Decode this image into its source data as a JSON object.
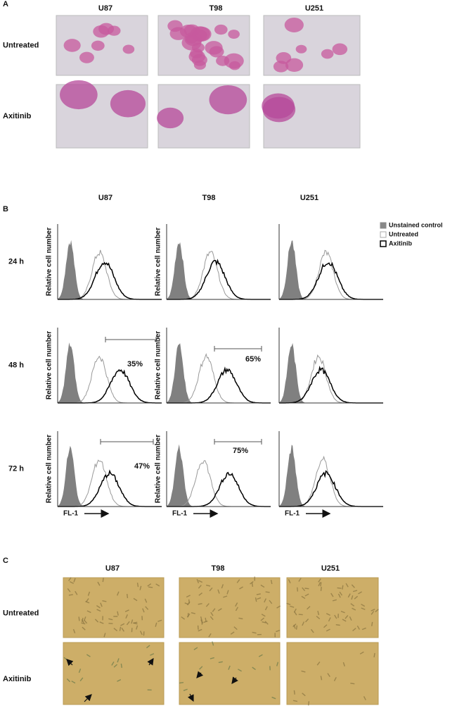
{
  "panel_a": {
    "label": "A",
    "columns": [
      "U87",
      "T98",
      "U251"
    ],
    "rows": [
      "Untreated",
      "Axitinib"
    ]
  },
  "panel_b": {
    "label": "B",
    "columns": [
      "U87",
      "T98",
      "U251"
    ],
    "rows": [
      "24 h",
      "48 h",
      "72 h"
    ],
    "y_axis_label": "Relative cell number",
    "x_axis_label": "FL-1",
    "legend": [
      "Unstained control",
      "Untreated",
      "Axitinib"
    ],
    "percentages": [
      "35%",
      "65%",
      "47%",
      "75%"
    ]
  },
  "panel_c": {
    "label": "C",
    "columns": [
      "U87",
      "T98",
      "U251"
    ],
    "rows": [
      "Untreated",
      "Axitinib"
    ]
  }
}
